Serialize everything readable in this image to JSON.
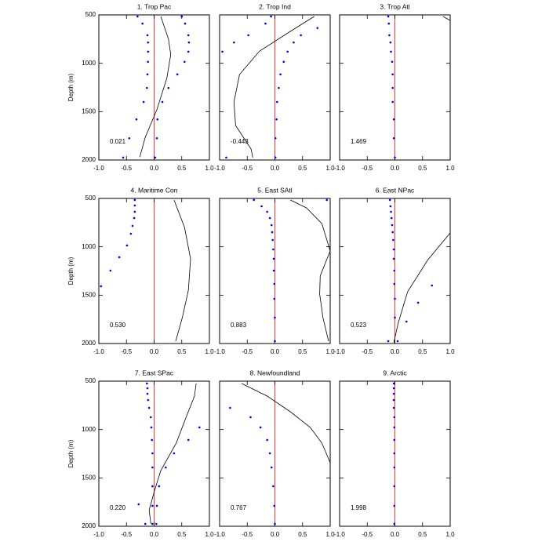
{
  "chart_data": [
    {
      "type": "scatter",
      "title": "1. Trop Pac",
      "annotation": "0.021",
      "y_label": "Depth (m)",
      "xlim": [
        -1,
        1
      ],
      "ylim": [
        2000,
        500
      ],
      "xticks": [
        {
          "value": -1,
          "label": "-1.0"
        },
        {
          "value": -0.5,
          "label": "-0.5"
        },
        {
          "value": 0,
          "label": "0.0"
        },
        {
          "value": 0.5,
          "label": "0.5"
        },
        {
          "value": 1,
          "label": "1.0"
        }
      ],
      "yticks": [
        500,
        1000,
        1500,
        2000
      ],
      "ref_x": 0,
      "ref_color": "#ff0000",
      "dots": [
        {
          "color": "#0000ff",
          "x": [
            -0.3,
            -0.21,
            -0.12,
            -0.11,
            -0.11,
            -0.11,
            -0.12,
            -0.13,
            -0.19,
            -0.32,
            -0.45,
            -0.56
          ],
          "y": [
            516,
            590,
            710,
            785,
            880,
            985,
            1115,
            1255,
            1400,
            1580,
            1775,
            1975
          ]
        },
        {
          "color": "#0000ff",
          "x": [
            0.5,
            0.56,
            0.62,
            0.63,
            0.62,
            0.55,
            0.42,
            0.26,
            0.15,
            0.06,
            0.05,
            0.02
          ],
          "y": [
            516,
            590,
            710,
            785,
            880,
            985,
            1115,
            1255,
            1400,
            1580,
            1775,
            1975
          ]
        }
      ],
      "curve": {
        "color": "#000000",
        "x": [
          0.12,
          0.26,
          0.3,
          0.23,
          0.05,
          -0.16,
          -0.26
        ],
        "y": [
          516,
          750,
          910,
          1155,
          1480,
          1765,
          1970
        ]
      }
    },
    {
      "type": "scatter",
      "title": "2. Trop Ind",
      "annotation": "-0.443",
      "xlim": [
        -1,
        1
      ],
      "ylim": [
        2000,
        500
      ],
      "xticks": [
        {
          "value": -1,
          "label": "-1.0"
        },
        {
          "value": -0.5,
          "label": "-0.5"
        },
        {
          "value": 0,
          "label": "0.0"
        },
        {
          "value": 0.5,
          "label": "0.5"
        },
        {
          "value": 1,
          "label": "1.0"
        }
      ],
      "yticks": [
        500,
        1000,
        1500,
        2000
      ],
      "ref_x": 0,
      "ref_color": "#ff0000",
      "dots": [
        {
          "color": "#0000ff",
          "x": [
            -0.07,
            -0.17,
            -0.48,
            -0.74,
            -0.95,
            -0.88
          ],
          "y": [
            516,
            590,
            710,
            785,
            880,
            1975
          ]
        },
        {
          "color": "#0000ff",
          "x": [
            0.77,
            0.47,
            0.34,
            0.23,
            0.16,
            0.1,
            0.07,
            0.04,
            0.03,
            0.01,
            0.01
          ],
          "y": [
            635,
            710,
            785,
            880,
            985,
            1115,
            1255,
            1400,
            1580,
            1775,
            1975
          ]
        }
      ],
      "curve": {
        "color": "#000000",
        "x": [
          0.71,
          0.28,
          -0.28,
          -0.64,
          -0.74,
          -0.71,
          -0.43,
          -0.4
        ],
        "y": [
          516,
          670,
          875,
          1116,
          1400,
          1643,
          1887,
          1976
        ]
      }
    },
    {
      "type": "scatter",
      "title": "3. Trop Atl",
      "annotation": "1.469",
      "xlim": [
        -1,
        1
      ],
      "ylim": [
        2000,
        500
      ],
      "xticks": [
        {
          "value": -1,
          "label": "-1.0"
        },
        {
          "value": -0.5,
          "label": "-0.5"
        },
        {
          "value": 0,
          "label": "0.0"
        },
        {
          "value": 0.5,
          "label": "0.5"
        },
        {
          "value": 1,
          "label": "1.0"
        }
      ],
      "yticks": [
        500,
        1000,
        1500,
        2000
      ],
      "ref_x": 0,
      "ref_color": "#ff0000",
      "dots": [
        {
          "color": "#0000ff",
          "x": [
            -0.12,
            -0.11,
            -0.1,
            -0.08,
            -0.07,
            -0.05,
            -0.04,
            -0.04,
            -0.04,
            -0.02,
            -0.02,
            0.0
          ],
          "y": [
            516,
            590,
            710,
            785,
            880,
            985,
            1115,
            1255,
            1400,
            1580,
            1775,
            1975
          ]
        }
      ],
      "curve": {
        "color": "#000000",
        "x": [
          0.87,
          1.0
        ],
        "y": [
          516,
          557
        ]
      }
    },
    {
      "type": "scatter",
      "title": "4. Maritime Con",
      "annotation": "0.530",
      "y_label": "Depth (m)",
      "xlim": [
        -1,
        1
      ],
      "ylim": [
        2000,
        500
      ],
      "xticks": [
        {
          "value": -1,
          "label": "-1.0"
        },
        {
          "value": -0.5,
          "label": "-0.5"
        },
        {
          "value": 0,
          "label": "0.0"
        },
        {
          "value": 0.5,
          "label": "0.5"
        },
        {
          "value": 1,
          "label": "1.0"
        }
      ],
      "yticks": [
        500,
        1000,
        1500,
        2000
      ],
      "ref_x": 0,
      "ref_color": "#ff0000",
      "dots": [
        {
          "color": "#0000ff",
          "x": [
            -0.35,
            -0.35,
            -0.35,
            -0.36,
            -0.39,
            -0.42,
            -0.49,
            -0.63,
            -0.79,
            -0.96
          ],
          "y": [
            516,
            573,
            638,
            703,
            784,
            865,
            986,
            1108,
            1246,
            1408
          ]
        }
      ],
      "curve": {
        "color": "#000000",
        "x": [
          0.36,
          0.55,
          0.66,
          0.62,
          0.51,
          0.39
        ],
        "y": [
          516,
          800,
          1124,
          1449,
          1732,
          1976
        ]
      }
    },
    {
      "type": "scatter",
      "title": "5. East SAtl",
      "annotation": "0.883",
      "xlim": [
        -1,
        1
      ],
      "ylim": [
        2000,
        500
      ],
      "xticks": [
        {
          "value": -1,
          "label": "-1.0"
        },
        {
          "value": -0.5,
          "label": "-0.5"
        },
        {
          "value": 0,
          "label": "0.0"
        },
        {
          "value": 0.5,
          "label": "0.5"
        },
        {
          "value": 1,
          "label": "1.0"
        }
      ],
      "yticks": [
        500,
        1000,
        1500,
        2000
      ],
      "ref_x": 0,
      "ref_color": "#ff0000",
      "dots": [
        {
          "color": "#0000ff",
          "x": [
            -0.38,
            -0.24,
            -0.14,
            -0.09,
            -0.06,
            -0.05,
            -0.04,
            -0.03,
            -0.02,
            -0.02,
            -0.01,
            -0.01,
            0,
            0
          ],
          "y": [
            516,
            581,
            638,
            703,
            776,
            849,
            930,
            1027,
            1124,
            1246,
            1384,
            1538,
            1732,
            1976
          ]
        },
        {
          "color": "#0000ff",
          "x": [
            0.94
          ],
          "y": [
            516
          ]
        }
      ],
      "curve": {
        "color": "#000000",
        "x": [
          0.28,
          0.57,
          0.85,
          1.0,
          0.82,
          0.81,
          0.87,
          0.97
        ],
        "y": [
          516,
          597,
          760,
          1043,
          1300,
          1490,
          1733,
          1976
        ]
      }
    },
    {
      "type": "scatter",
      "title": "6. East NPac",
      "annotation": "0.523",
      "xlim": [
        -1,
        1
      ],
      "ylim": [
        2000,
        500
      ],
      "xticks": [
        {
          "value": -1,
          "label": "-1.0"
        },
        {
          "value": -0.5,
          "label": "-0.5"
        },
        {
          "value": 0,
          "label": "0.0"
        },
        {
          "value": 0.5,
          "label": "0.5"
        },
        {
          "value": 1,
          "label": "1.0"
        }
      ],
      "yticks": [
        500,
        1000,
        1500,
        2000
      ],
      "ref_x": 0,
      "ref_color": "#ff0000",
      "dots": [
        {
          "color": "#0000ff",
          "x": [
            -0.09,
            -0.08,
            -0.07,
            -0.06,
            -0.05,
            -0.04,
            -0.03,
            -0.02,
            -0.02,
            -0.01,
            -0.01,
            0,
            0,
            -0.12
          ],
          "y": [
            516,
            581,
            638,
            703,
            776,
            849,
            930,
            1027,
            1124,
            1246,
            1384,
            1538,
            1732,
            1976
          ]
        },
        {
          "color": "#0000ff",
          "x": [
            0.67,
            0.42,
            0.21,
            0.05
          ],
          "y": [
            1400,
            1578,
            1773,
            1976
          ]
        }
      ],
      "curve": {
        "color": "#000000",
        "x": [
          1.0,
          0.59,
          0.23,
          0.06,
          -0.02
        ],
        "y": [
          857,
          1140,
          1465,
          1789,
          1992
        ]
      }
    },
    {
      "type": "scatter",
      "title": "7. East SPac",
      "annotation": "0.220",
      "y_label": "Depth (m)",
      "xlim": [
        -1,
        1
      ],
      "ylim": [
        2000,
        500
      ],
      "xticks": [
        {
          "value": -1,
          "label": "-1.0"
        },
        {
          "value": -0.5,
          "label": "-0.5"
        },
        {
          "value": 0,
          "label": "0.0"
        },
        {
          "value": 0.5,
          "label": "0.5"
        },
        {
          "value": 1,
          "label": "1.0"
        }
      ],
      "yticks": [
        500,
        1000,
        1500,
        2000
      ],
      "ref_x": 0,
      "ref_color": "#ff0000",
      "dots": [
        {
          "color": "#0000ff",
          "x": [
            -0.13,
            -0.12,
            -0.12,
            -0.11,
            -0.09,
            -0.06,
            -0.05,
            -0.04,
            -0.03,
            -0.03,
            -0.03,
            -0.03,
            -0.03
          ],
          "y": [
            524,
            573,
            630,
            695,
            776,
            873,
            978,
            1108,
            1246,
            1392,
            1586,
            1789,
            1976
          ]
        },
        {
          "color": "#0000ff",
          "x": [
            0.82,
            0.62,
            0.36,
            0.21,
            0.09,
            0.05,
            0.04
          ],
          "y": [
            978,
            1108,
            1246,
            1392,
            1586,
            1789,
            1976
          ]
        },
        {
          "color": "#0000ff",
          "x": [
            -0.28,
            -0.16
          ],
          "y": [
            1773,
            1976
          ]
        }
      ],
      "curve": {
        "color": "#000000",
        "x": [
          0.76,
          0.73,
          0.59,
          0.4,
          0.12,
          0.01,
          -0.09,
          -0.06
        ],
        "y": [
          524,
          654,
          857,
          1140,
          1424,
          1627,
          1830,
          1976
        ]
      }
    },
    {
      "type": "scatter",
      "title": "8. Newfoundland",
      "annotation": "0.767",
      "xlim": [
        -1,
        1
      ],
      "ylim": [
        2000,
        500
      ],
      "xticks": [
        {
          "value": -1,
          "label": "-1.0"
        },
        {
          "value": -0.5,
          "label": "-0.5"
        },
        {
          "value": 0,
          "label": "0.0"
        },
        {
          "value": 0.5,
          "label": "0.5"
        },
        {
          "value": 1,
          "label": "1.0"
        }
      ],
      "yticks": [
        500,
        1000,
        1500,
        2000
      ],
      "ref_x": 0,
      "ref_color": "#ff0000",
      "dots": [
        {
          "color": "#0000ff",
          "x": [
            -0.81,
            -0.44,
            -0.26,
            -0.14,
            -0.09,
            -0.06,
            -0.03,
            -0.01,
            0
          ],
          "y": [
            776,
            873,
            978,
            1108,
            1246,
            1392,
            1586,
            1789,
            1976
          ]
        }
      ],
      "curve": {
        "color": "#000000",
        "x": [
          -0.6,
          -0.14,
          0.28,
          0.64,
          0.85,
          1.0
        ],
        "y": [
          524,
          654,
          816,
          978,
          1140,
          1343
        ]
      }
    },
    {
      "type": "scatter",
      "title": "9. Arctic",
      "annotation": "1.998",
      "xlim": [
        -1,
        1
      ],
      "ylim": [
        2000,
        500
      ],
      "xticks": [
        {
          "value": -1,
          "label": "-1.0"
        },
        {
          "value": -0.5,
          "label": "-0.5"
        },
        {
          "value": 0,
          "label": "0.0"
        },
        {
          "value": 0.5,
          "label": "0.5"
        },
        {
          "value": 1,
          "label": "1.0"
        }
      ],
      "yticks": [
        500,
        1000,
        1500,
        2000
      ],
      "ref_x": 0,
      "ref_color": "#ff0000",
      "dots": [
        {
          "color": "#0000ff",
          "x": [
            -0.02,
            -0.02,
            -0.02,
            -0.02,
            -0.02,
            -0.01,
            -0.01,
            -0.01,
            -0.01,
            -0.01,
            -0.01,
            -0.01,
            -0.01
          ],
          "y": [
            524,
            573,
            630,
            695,
            776,
            873,
            978,
            1108,
            1246,
            1392,
            1586,
            1789,
            1976
          ]
        }
      ],
      "curve": {
        "color": "#000000",
        "x": [],
        "y": []
      }
    }
  ]
}
